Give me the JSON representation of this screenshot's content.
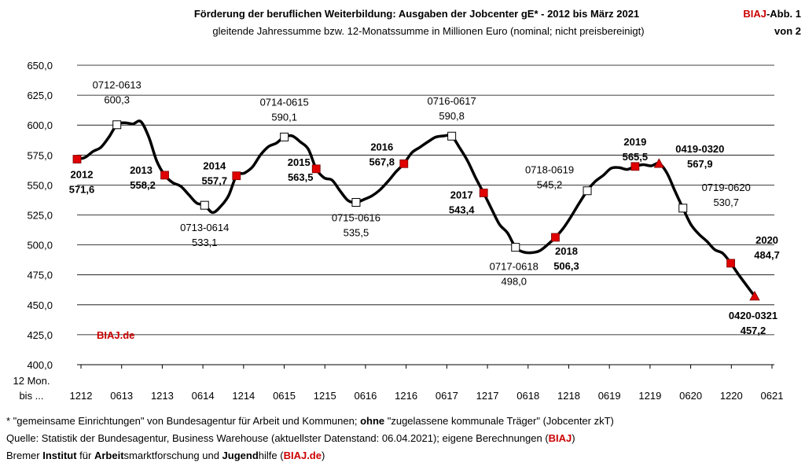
{
  "header": {
    "title": "Förderung der beruflichen Weiterbildung: Ausgaben der Jobcenter gE* - 2012 bis März 2021",
    "subtitle": "gleitende  Jahressumme bzw. 12-Monatssumme in Millionen  Euro (nominal; nicht preisbereinigt)",
    "badge_brand": "BIAJ",
    "badge_rest": "-Abb. 1",
    "badge_line2": "von 2"
  },
  "watermark": "BIAJ.de",
  "x_axis_corner": [
    "12 Mon.",
    "bis ..."
  ],
  "footer": {
    "line1_a": "* \"gemeinsame Einrichtungen\" von Bundesagentur für Arbeit und Kommunen; ",
    "line1_b": "ohne",
    "line1_c": " \"zugelassene kommunale Träger\" (Jobcenter zkT)",
    "line2_a": "Quelle: Statistik der Bundesagentur, Business Warehouse (aktuellster Datenstand: 06.04.2021); eigene Berechnungen (",
    "line2_b": "BIAJ",
    "line2_c": ")",
    "line3_a": "Bremer ",
    "line3_b": "Institut",
    "line3_c": " für ",
    "line3_d": "Arbeit",
    "line3_e": "smarktforschung und ",
    "line3_f": "Jugend",
    "line3_g": "hilfe (",
    "line3_h": "BIAJ.de",
    "line3_i": ")"
  },
  "colors": {
    "line": "#000000",
    "red_marker": "#e00000",
    "brand": "#cc0000",
    "grid": "#000000"
  },
  "chart_data": {
    "type": "line",
    "ylim": [
      400,
      650
    ],
    "yticks": [
      "400,0",
      "425,0",
      "450,0",
      "475,0",
      "500,0",
      "525,0",
      "550,0",
      "575,0",
      "600,0",
      "625,0",
      "650,0"
    ],
    "xticks": [
      "1212",
      "0613",
      "1213",
      "0614",
      "1214",
      "0615",
      "1215",
      "0616",
      "1216",
      "0617",
      "1217",
      "0618",
      "1218",
      "0619",
      "1219",
      "0620",
      "1220",
      "0621"
    ],
    "x_start": "1212",
    "series": [
      {
        "values": [
          571.6,
          573.0,
          578.0,
          581.5,
          590.0,
          600.3,
          602.0,
          601.0,
          603.0,
          590.0,
          570.0,
          558.2,
          552.0,
          549.0,
          542.0,
          535.0,
          533.1,
          527.0,
          532.0,
          541.0,
          557.7,
          560.0,
          565.0,
          575.0,
          582.0,
          585.0,
          590.1,
          591.0,
          586.0,
          580.0,
          563.5,
          556.0,
          554.0,
          545.0,
          537.0,
          535.5,
          538.0,
          541.0,
          546.0,
          553.0,
          561.0,
          567.8,
          577.0,
          581.5,
          586.0,
          590.0,
          591.0,
          590.8,
          581.0,
          570.0,
          556.0,
          543.4,
          530.0,
          517.0,
          510.0,
          498.0,
          494.0,
          493.5,
          495.0,
          500.0,
          506.3,
          514.0,
          524.0,
          535.0,
          545.2,
          553.0,
          558.0,
          564.0,
          564.5,
          563.0,
          565.5,
          567.0,
          566.0,
          567.9,
          560.0,
          545.0,
          530.7,
          517.0,
          509.0,
          503.0,
          496.0,
          493.0,
          484.7,
          475.0,
          466.0,
          457.2
        ]
      }
    ],
    "annotations": [
      {
        "idx": 0,
        "label": "2012",
        "value": "571,6",
        "marker": "red-square",
        "bold": true
      },
      {
        "idx": 5,
        "label": "0712-0613",
        "value": "600,3",
        "marker": "white-square",
        "bold": false
      },
      {
        "idx": 11,
        "label": "2013",
        "value": "558,2",
        "marker": "red-square",
        "bold": true
      },
      {
        "idx": 16,
        "label": "0713-0614",
        "value": "533,1",
        "marker": "white-square",
        "bold": false
      },
      {
        "idx": 20,
        "label": "2014",
        "value": "557,7",
        "marker": "red-square",
        "bold": true
      },
      {
        "idx": 26,
        "label": "0714-0615",
        "value": "590,1",
        "marker": "white-square",
        "bold": false
      },
      {
        "idx": 30,
        "label": "2015",
        "value": "563,5",
        "marker": "red-square",
        "bold": true
      },
      {
        "idx": 35,
        "label": "0715-0616",
        "value": "535,5",
        "marker": "white-square",
        "bold": false
      },
      {
        "idx": 41,
        "label": "2016",
        "value": "567,8",
        "marker": "red-square",
        "bold": true
      },
      {
        "idx": 47,
        "label": "0716-0617",
        "value": "590,8",
        "marker": "white-square",
        "bold": false
      },
      {
        "idx": 51,
        "label": "2017",
        "value": "543,4",
        "marker": "red-square",
        "bold": true
      },
      {
        "idx": 55,
        "label": "0717-0618",
        "value": "498,0",
        "marker": "white-square",
        "bold": false
      },
      {
        "idx": 60,
        "label": "2018",
        "value": "506,3",
        "marker": "red-square",
        "bold": true
      },
      {
        "idx": 64,
        "label": "0718-0619",
        "value": "545,2",
        "marker": "white-square",
        "bold": false
      },
      {
        "idx": 70,
        "label": "2019",
        "value": "565,5",
        "marker": "red-square",
        "bold": true
      },
      {
        "idx": 73,
        "label": "0419-0320",
        "value": "567,9",
        "marker": "red-triangle",
        "bold": true
      },
      {
        "idx": 76,
        "label": "0719-0620",
        "value": "530,7",
        "marker": "white-square",
        "bold": false
      },
      {
        "idx": 82,
        "label": "2020",
        "value": "484,7",
        "marker": "red-square",
        "bold": true
      },
      {
        "idx": 85,
        "label": "0420-0321",
        "value": "457,2",
        "marker": "red-triangle",
        "bold": true
      }
    ],
    "grid": "horizontal",
    "legend": "none"
  }
}
